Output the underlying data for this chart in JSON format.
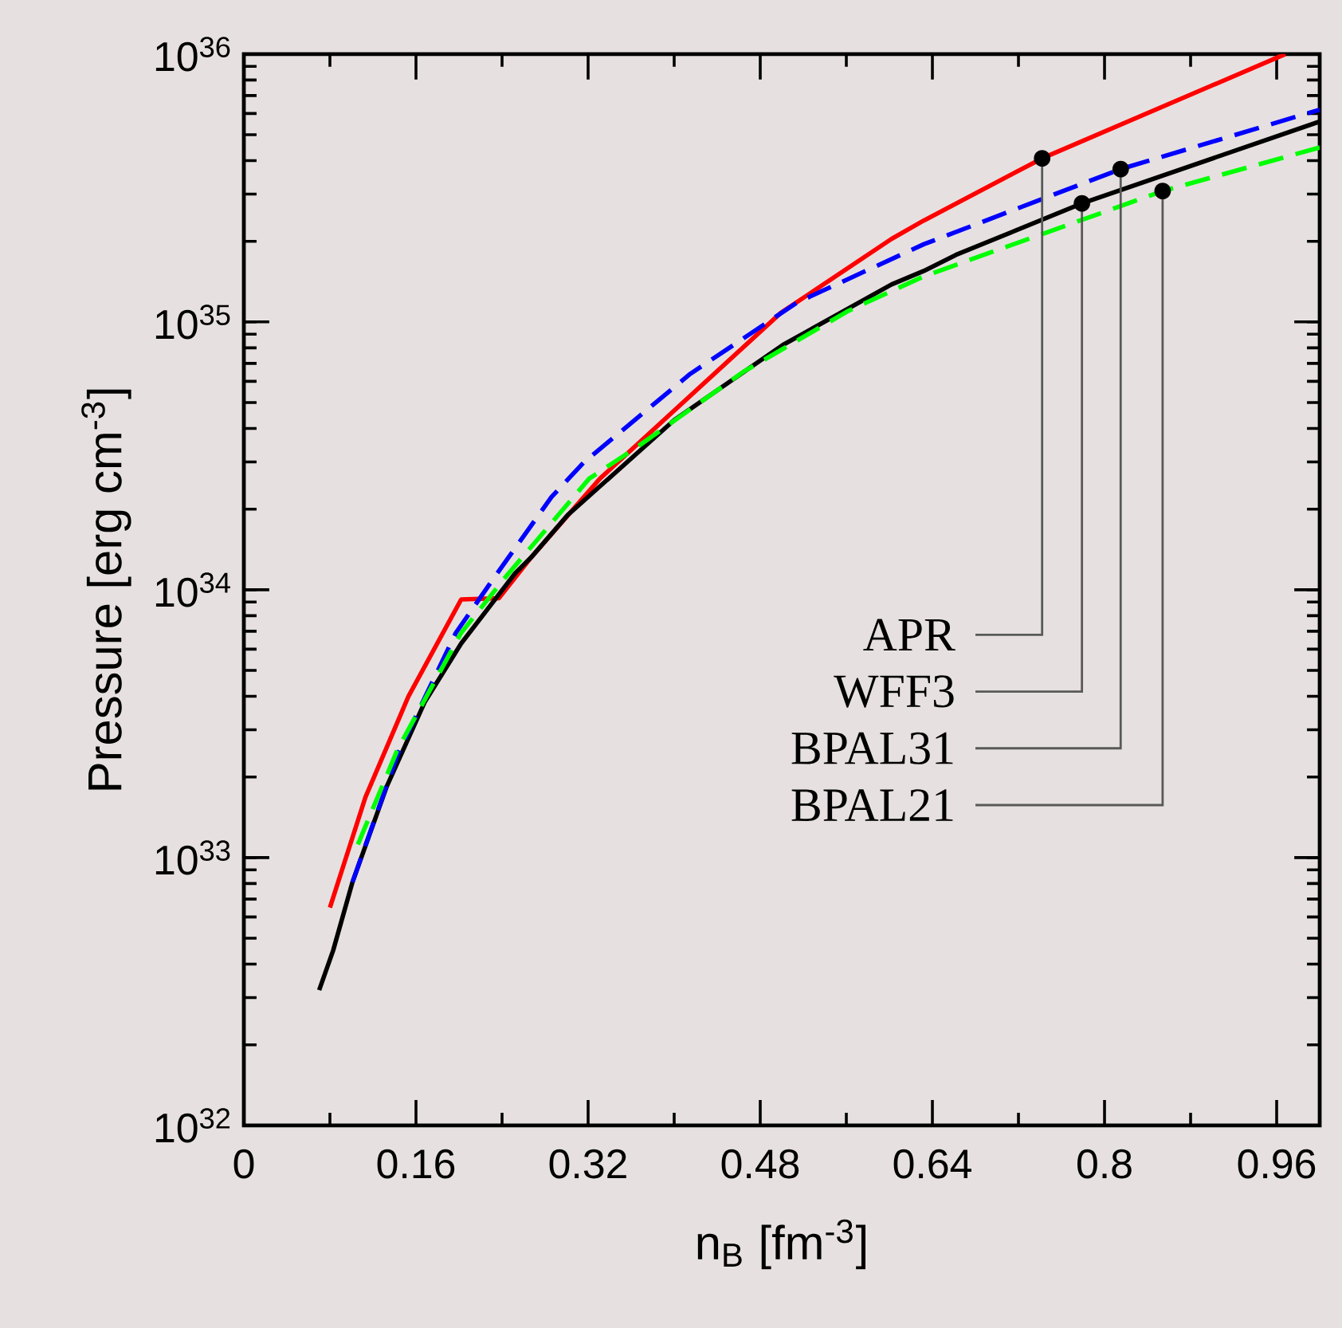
{
  "chart_data": {
    "type": "line",
    "xlabel": "n$_{B}$ [fm$^{-3}$]",
    "ylabel": "Pressure [erg cm$^{-3}$]",
    "log": "y",
    "grid": false,
    "xlim": [
      0,
      1.0
    ],
    "xticks": [
      0,
      0.16,
      0.32,
      0.48,
      0.64,
      0.8,
      0.96
    ],
    "ylim": [
      1e+32,
      1e+36
    ],
    "yticks": [
      {
        "value": 1e+32,
        "label": "10$^{32}$"
      },
      {
        "value": 1e+33,
        "label": "10$^{33}$"
      },
      {
        "value": 1e+34,
        "label": "10$^{34}$"
      },
      {
        "value": 1e+35,
        "label": "10$^{35}$"
      },
      {
        "value": 1e+36,
        "label": "10$^{36}$"
      }
    ],
    "series": [
      {
        "color": "#ff0000",
        "line_style": "solid",
        "x": [
          0.08,
          0.113,
          0.153,
          0.202,
          0.237,
          0.267,
          0.331,
          0.499,
          0.602,
          0.632,
          0.742,
          0.968
        ],
        "values": [
          6.5e+32,
          1.68e+33,
          4e+33,
          9.2e+33,
          9.3e+33,
          1.32e+34,
          2.6e+34,
          1.08e+35,
          2.04e+35,
          2.39e+35,
          4.08e+35,
          1e+36
        ]
      },
      {
        "color": "#0000ff",
        "line_style": "dashed",
        "x": [
          0.101,
          0.143,
          0.197,
          0.232,
          0.286,
          0.316,
          0.415,
          0.514,
          0.632,
          0.815,
          1.0
        ],
        "values": [
          8.1e+32,
          2.43e+33,
          6.9e+33,
          1.1e+34,
          2.22e+34,
          2.99e+34,
          6.4e+34,
          1.18e+35,
          1.95e+35,
          3.72e+35,
          6.2e+35
        ]
      },
      {
        "color": "#00ff00",
        "line_style": "dashed",
        "x": [
          0.106,
          0.143,
          0.202,
          0.242,
          0.321,
          0.365,
          0.464,
          0.562,
          0.632,
          0.854,
          1.0
        ],
        "values": [
          1.12e+33,
          2.54e+33,
          6.9e+33,
          1.1e+34,
          2.6e+34,
          3.4e+34,
          6.5e+34,
          1.1e+35,
          1.48e+35,
          3.08e+35,
          4.48e+35
        ]
      },
      {
        "color": "#000000",
        "line_style": "solid",
        "x": [
          0.07,
          0.083,
          0.101,
          0.133,
          0.168,
          0.202,
          0.252,
          0.267,
          0.301,
          0.4,
          0.501,
          0.602,
          0.632,
          0.662,
          0.779,
          1.0
        ],
        "values": [
          3.2e+32,
          4.5e+32,
          8.1e+32,
          1.85e+33,
          3.8e+33,
          6.3e+33,
          1.15e+34,
          1.32e+34,
          1.9e+34,
          4.3e+34,
          8.2e+34,
          1.38e+35,
          1.55e+35,
          1.78e+35,
          2.77e+35,
          5.6e+35
        ]
      }
    ],
    "annotations": [
      {
        "text": "APR",
        "x": 0.742,
        "y": 4.08e+35
      },
      {
        "text": "WFF3",
        "x": 0.779,
        "y": 2.77e+35
      },
      {
        "text": "BPAL31",
        "x": 0.815,
        "y": 3.72e+35
      },
      {
        "text": "BPAL21",
        "x": 0.854,
        "y": 3.08e+35
      }
    ]
  }
}
